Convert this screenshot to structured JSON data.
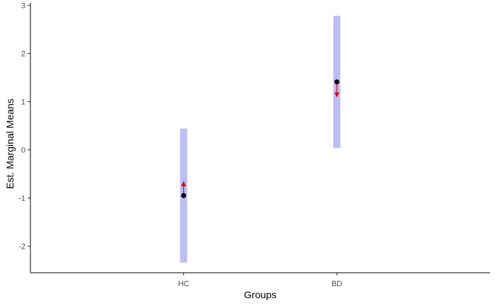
{
  "chart_data": {
    "type": "scatter",
    "xlabel": "Groups",
    "ylabel": "Est. Marginal Means",
    "categories": [
      "HC",
      "BD"
    ],
    "ylim": [
      -2.55,
      3.05
    ],
    "yticks": [
      -2,
      -1,
      0,
      1,
      2,
      3
    ],
    "grid": false,
    "series": [
      {
        "estimates": [
          -0.95,
          1.41
        ],
        "ci_lower": [
          -2.34,
          0.04
        ],
        "ci_upper": [
          0.44,
          2.78
        ],
        "comparison_arrow_end": [
          -0.65,
          1.09
        ]
      }
    ],
    "colors": {
      "interval": "#bcbcf6",
      "point": "#000000",
      "arrow": "#e00000",
      "axis": "#000000"
    }
  }
}
